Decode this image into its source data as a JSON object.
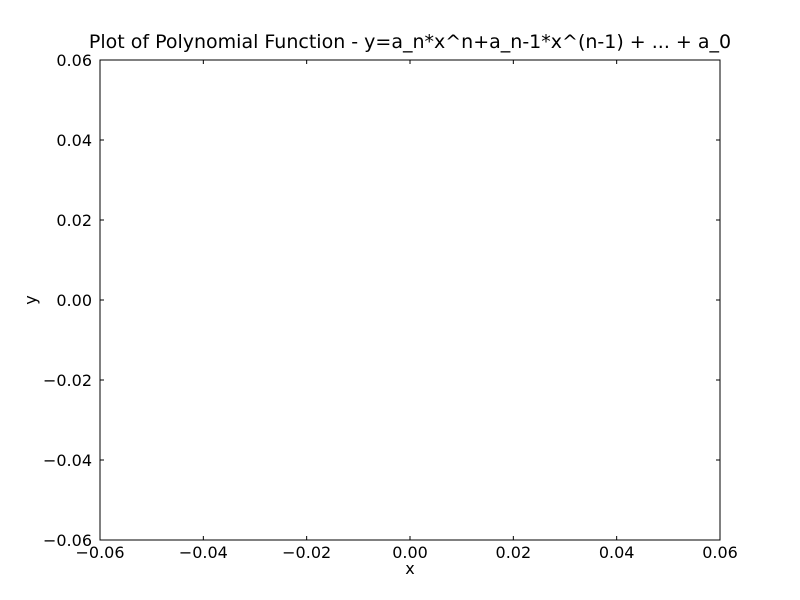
{
  "chart_data": {
    "type": "line",
    "title": "Plot of Polynomial Function - y=a_n*x^n+a_n-1*x^(n-1) + ... + a_0",
    "xlabel": "x",
    "ylabel": "y",
    "xlim": [
      -0.06,
      0.06
    ],
    "ylim": [
      -0.06,
      0.06
    ],
    "x_ticks": [
      -0.06,
      -0.04,
      -0.02,
      0.0,
      0.02,
      0.04,
      0.06
    ],
    "y_ticks": [
      -0.06,
      -0.04,
      -0.02,
      0.0,
      0.02,
      0.04,
      0.06
    ],
    "x_tick_labels": [
      "−0.06",
      "−0.04",
      "−0.02",
      "0.00",
      "0.02",
      "0.04",
      "0.06"
    ],
    "y_tick_labels": [
      "−0.06",
      "−0.04",
      "−0.02",
      "0.00",
      "0.02",
      "0.04",
      "0.06"
    ],
    "grid": false,
    "series": []
  }
}
